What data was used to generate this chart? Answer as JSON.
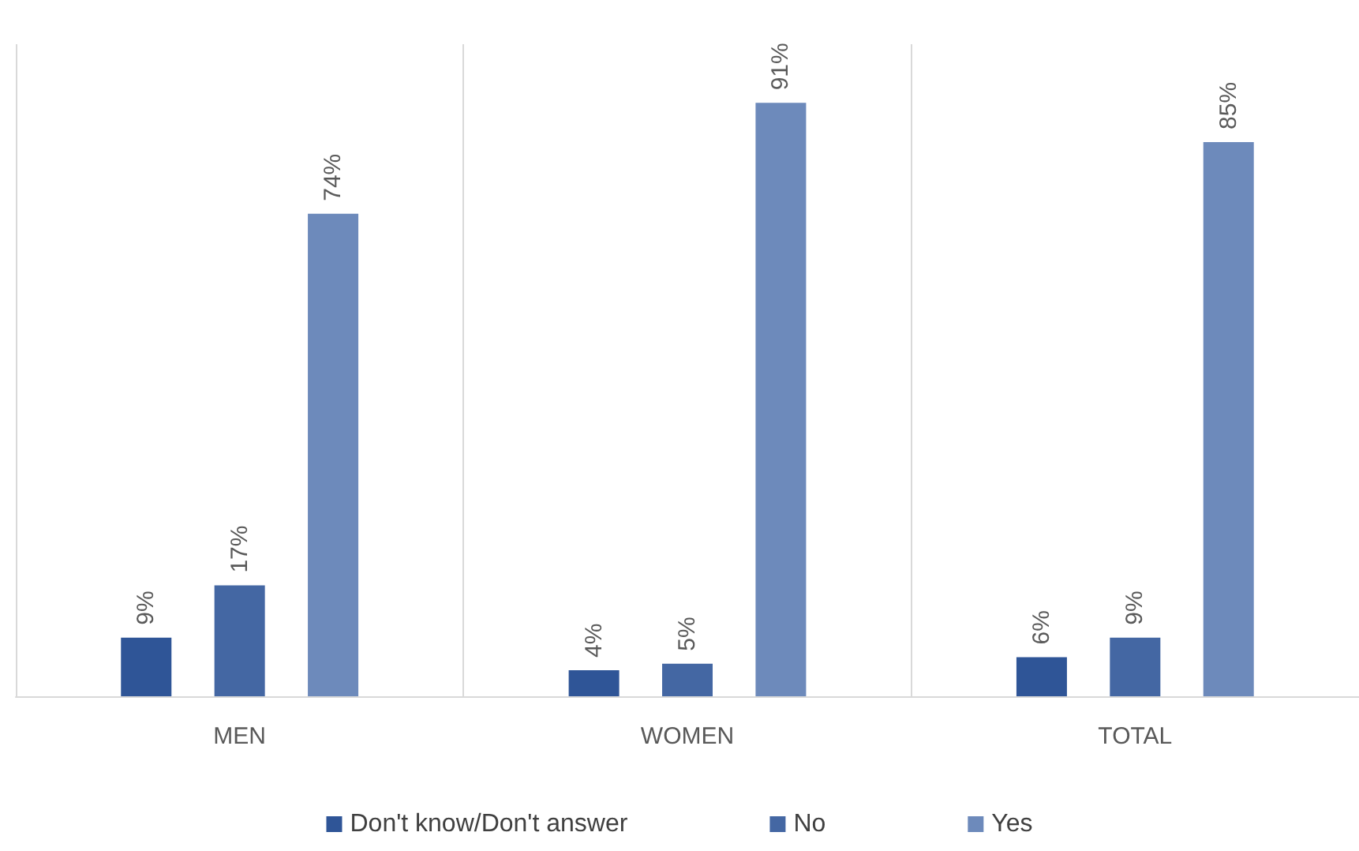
{
  "chart_data": {
    "type": "bar",
    "categories": [
      "MEN",
      "WOMEN",
      "TOTAL"
    ],
    "series": [
      {
        "name": "Don't know/Don't answer",
        "color": "#2f5597",
        "values": [
          9,
          4,
          6
        ],
        "value_labels": [
          "9%",
          "4%",
          "6%"
        ]
      },
      {
        "name": "No",
        "color": "#4467a3",
        "values": [
          17,
          5,
          9
        ],
        "value_labels": [
          "17%",
          "5%",
          "9%"
        ]
      },
      {
        "name": "Yes",
        "color": "#6d8abb",
        "values": [
          74,
          91,
          85
        ],
        "value_labels": [
          "74%",
          "91%",
          "85%"
        ]
      }
    ],
    "grid": "x",
    "legend": "bottom",
    "tick_labels": "x"
  }
}
